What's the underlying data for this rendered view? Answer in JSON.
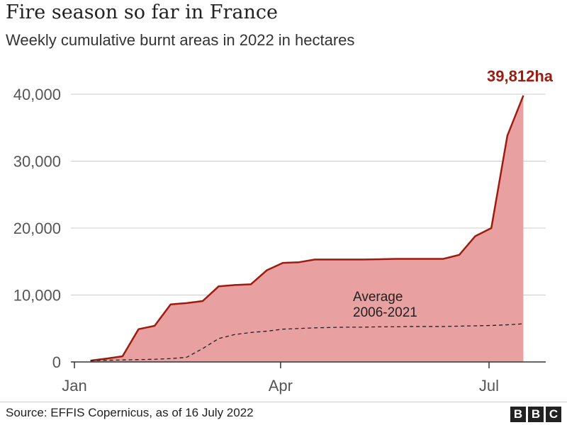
{
  "chart_data": {
    "type": "area",
    "title": "Fire season so far in France",
    "subtitle": "Weekly cumulative burnt areas in 2022 in hectares",
    "x": [
      "2022-01-08",
      "2022-01-15",
      "2022-01-22",
      "2022-01-29",
      "2022-02-05",
      "2022-02-12",
      "2022-02-19",
      "2022-02-26",
      "2022-03-05",
      "2022-03-12",
      "2022-03-19",
      "2022-03-26",
      "2022-04-02",
      "2022-04-09",
      "2022-04-16",
      "2022-04-23",
      "2022-04-30",
      "2022-05-07",
      "2022-05-14",
      "2022-05-21",
      "2022-05-28",
      "2022-06-04",
      "2022-06-11",
      "2022-06-18",
      "2022-06-25",
      "2022-07-02",
      "2022-07-09",
      "2022-07-16"
    ],
    "series": [
      {
        "values": [
          200,
          500,
          850,
          4900,
          5400,
          8600,
          8800,
          9100,
          11300,
          11500,
          11600,
          13700,
          14800,
          14900,
          15300,
          15300,
          15300,
          15300,
          15350,
          15400,
          15400,
          15400,
          15400,
          16000,
          18800,
          20000,
          33800,
          39812
        ],
        "color": "#9e1b0f",
        "fill": "#e8a0a0"
      },
      {
        "name": "Average 2006-2021",
        "values": [
          200,
          250,
          300,
          350,
          400,
          500,
          700,
          2000,
          3500,
          4100,
          4400,
          4600,
          4900,
          5000,
          5100,
          5150,
          5200,
          5200,
          5250,
          5250,
          5300,
          5300,
          5300,
          5350,
          5400,
          5450,
          5550,
          5700
        ],
        "color": "#222222",
        "style": "dashed"
      }
    ],
    "annotation_line1": "Average",
    "annotation_line2": "2006-2021",
    "end_label": "39,812ha",
    "yticks": [
      0,
      10000,
      20000,
      30000,
      40000
    ],
    "ytick_labels": [
      "0",
      "10,000",
      "20,000",
      "30,000",
      "40,000"
    ],
    "xticks": [
      "2022-01-01",
      "2022-04-01",
      "2022-07-01"
    ],
    "xtick_labels": [
      "Jan",
      "Apr",
      "Jul"
    ],
    "ylim": [
      0,
      40000
    ],
    "grid": true
  },
  "footer": {
    "source": "Source: EFFIS Copernicus, as of 16 July 2022",
    "logo": [
      "B",
      "B",
      "C"
    ]
  }
}
